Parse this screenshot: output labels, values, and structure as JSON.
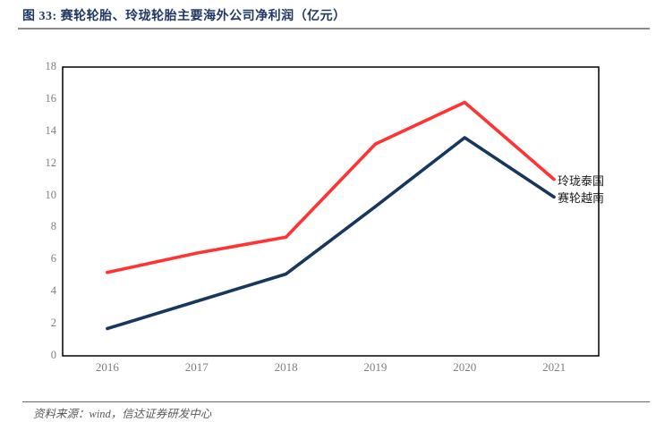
{
  "figure": {
    "title": "图 33:  赛轮轮胎、玲珑轮胎主要海外公司净利润（亿元）",
    "source": "资料来源：wind，信达证券研发中心"
  },
  "colors": {
    "title_navy": "#1F3864",
    "title_rule_gray": "#8C8C8C",
    "source_rule_gray": "#666666",
    "source_gray": "#595959",
    "tick_gray": "#7F7F7F",
    "plot_border_black": "#000000"
  },
  "chart_data": {
    "type": "line",
    "title": "赛轮轮胎、玲珑轮胎主要海外公司净利润（亿元）",
    "categories": [
      "2016",
      "2017",
      "2018",
      "2019",
      "2020",
      "2021"
    ],
    "series": [
      {
        "name": "玲珑泰国",
        "color": "#FF3333",
        "values": [
          5.2,
          6.4,
          7.4,
          13.2,
          15.8,
          11.0
        ]
      },
      {
        "name": "赛轮越南",
        "color": "#17375E",
        "values": [
          1.7,
          3.4,
          5.1,
          9.3,
          13.6,
          9.9
        ]
      }
    ],
    "xlabel": "",
    "ylabel": "",
    "ylim": [
      0,
      18
    ],
    "y_ticks": [
      0,
      2,
      4,
      6,
      8,
      10,
      12,
      14,
      16,
      18
    ],
    "grid": false,
    "legend_position": "right-of-line-ends"
  }
}
